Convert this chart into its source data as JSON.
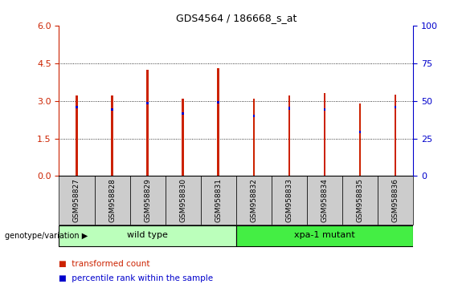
{
  "title": "GDS4564 / 186668_s_at",
  "samples": [
    "GSM958827",
    "GSM958828",
    "GSM958829",
    "GSM958830",
    "GSM958831",
    "GSM958832",
    "GSM958833",
    "GSM958834",
    "GSM958835",
    "GSM958836"
  ],
  "transformed_counts": [
    3.2,
    3.2,
    4.25,
    3.1,
    4.3,
    3.1,
    3.2,
    3.3,
    2.9,
    3.25
  ],
  "percentile_ranks": [
    2.75,
    2.65,
    2.9,
    2.5,
    2.95,
    2.4,
    2.7,
    2.65,
    1.75,
    2.75
  ],
  "bar_color": "#cc2200",
  "percentile_color": "#0000cc",
  "bar_width": 0.06,
  "ylim_left": [
    0,
    6
  ],
  "ylim_right": [
    0,
    100
  ],
  "yticks_left": [
    0,
    1.5,
    3.0,
    4.5,
    6
  ],
  "yticks_right": [
    0,
    25,
    50,
    75,
    100
  ],
  "groups": [
    {
      "label": "wild type",
      "indices": [
        0,
        1,
        2,
        3,
        4
      ],
      "color": "#bbffbb"
    },
    {
      "label": "xpa-1 mutant",
      "indices": [
        5,
        6,
        7,
        8,
        9
      ],
      "color": "#44ee44"
    }
  ],
  "group_label": "genotype/variation",
  "legend_items": [
    {
      "label": "transformed count",
      "color": "#cc2200"
    },
    {
      "label": "percentile rank within the sample",
      "color": "#0000cc"
    }
  ],
  "axis_label_color_left": "#cc2200",
  "axis_label_color_right": "#0000cc",
  "bg_color": "#ffffff",
  "plot_bg_color": "#ffffff",
  "tick_label_bg": "#cccccc",
  "blue_bar_height": 0.1
}
